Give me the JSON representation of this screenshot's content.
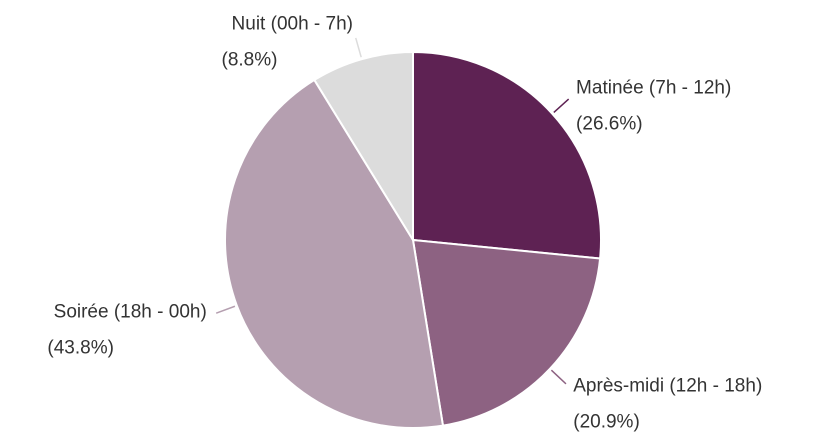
{
  "chart_data": {
    "type": "pie",
    "categories": [
      "Matinée (7h - 12h)",
      "Après-midi (12h - 18h)",
      "Soirée (18h - 00h)",
      "Nuit (00h - 7h)"
    ],
    "values": [
      26.6,
      20.9,
      43.8,
      8.8
    ],
    "value_labels": [
      "(26.6%)",
      "(20.9%)",
      "(43.8%)",
      "(8.8%)"
    ],
    "colors": [
      "#5e2253",
      "#8d6282",
      "#b59fb0",
      "#dcdcdc"
    ]
  }
}
